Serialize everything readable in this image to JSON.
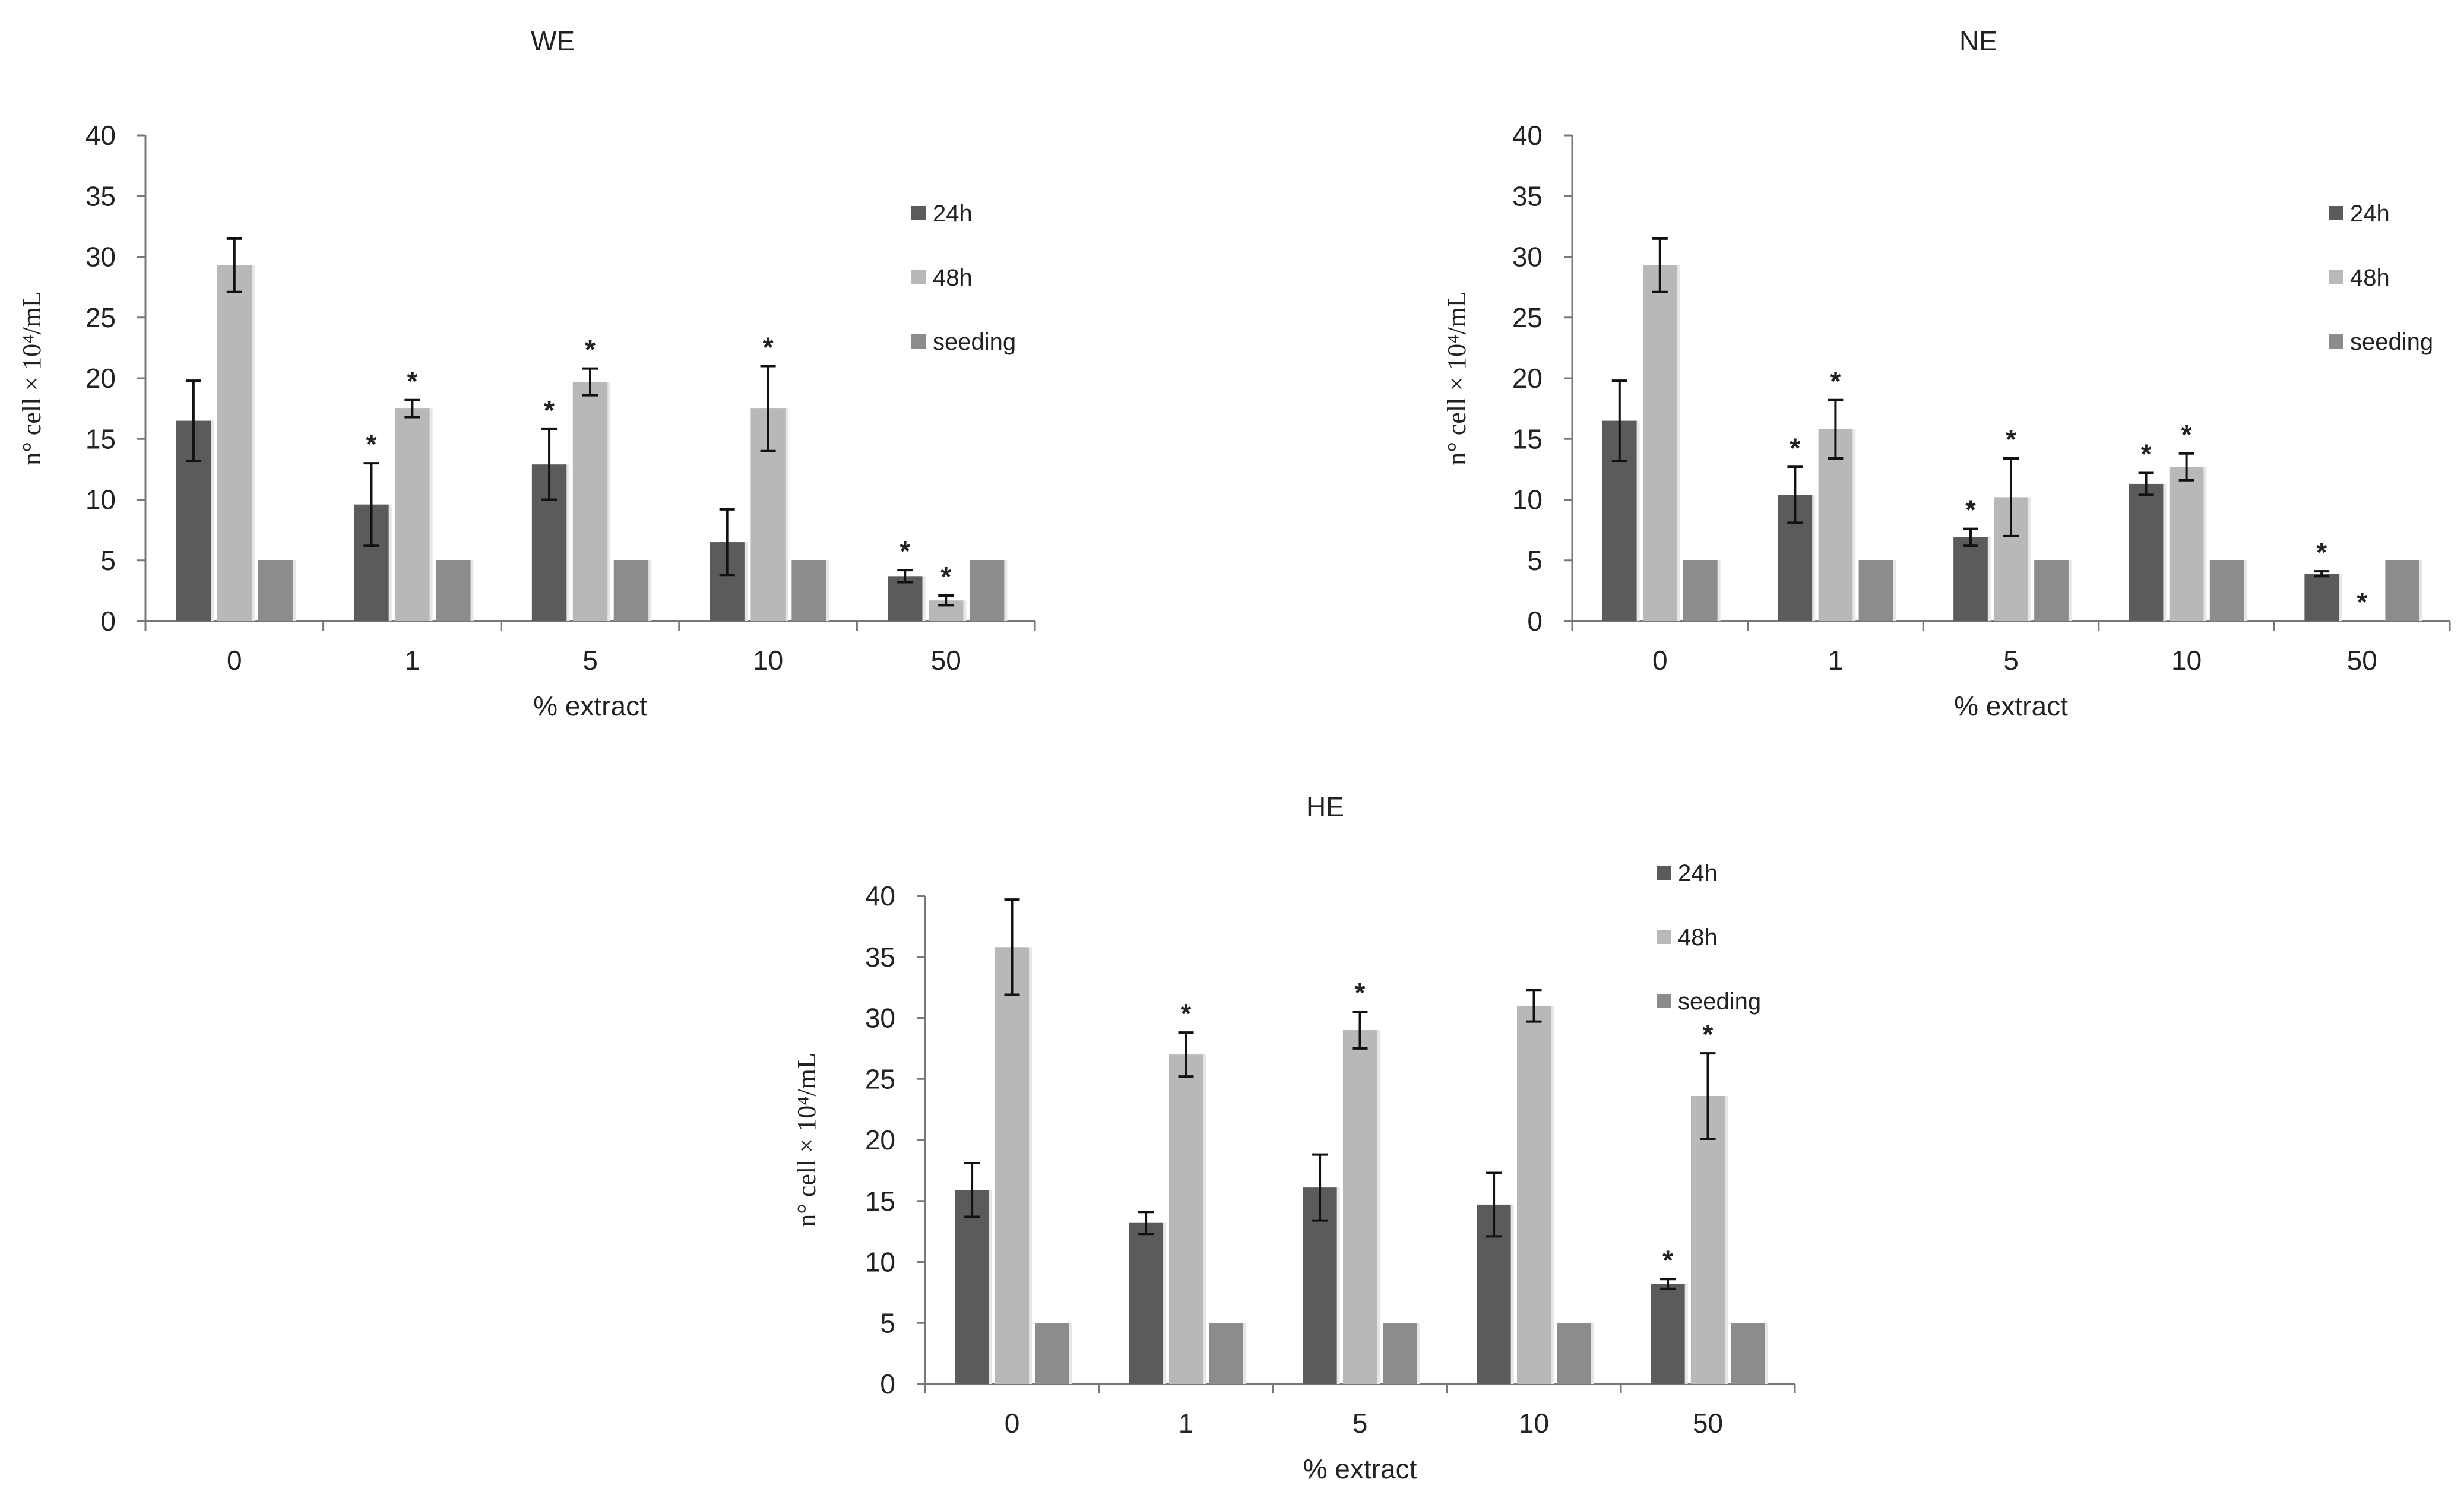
{
  "chart_data": [
    {
      "type": "bar",
      "title": "WE",
      "xlabel": "% extract",
      "ylabel": "n° cell × 10⁴/mL",
      "ylim": [
        0,
        40
      ],
      "yticks": [
        0,
        5,
        10,
        15,
        20,
        25,
        30,
        35,
        40
      ],
      "categories": [
        "0",
        "1",
        "5",
        "10",
        "50"
      ],
      "series": [
        {
          "name": "24h",
          "color": "#5b5b5b",
          "values": [
            16.5,
            9.6,
            12.9,
            6.5,
            3.7
          ],
          "errors": [
            3.3,
            3.4,
            2.9,
            2.7,
            0.5
          ],
          "significant": [
            false,
            true,
            true,
            false,
            true
          ]
        },
        {
          "name": "48h",
          "color": "#b8b8b8",
          "values": [
            29.3,
            17.5,
            19.7,
            17.5,
            1.7
          ],
          "errors": [
            2.2,
            0.7,
            1.1,
            3.5,
            0.4
          ],
          "significant": [
            false,
            true,
            true,
            true,
            true
          ]
        },
        {
          "name": "seeding",
          "color": "#8c8c8c",
          "values": [
            5,
            5,
            5,
            5,
            5
          ],
          "errors": [
            0,
            0,
            0,
            0,
            0
          ],
          "significant": [
            false,
            false,
            false,
            false,
            false
          ]
        }
      ],
      "legend": "right",
      "significance_marker": "*"
    },
    {
      "type": "bar",
      "title": "NE",
      "xlabel": "% extract",
      "ylabel": "n° cell × 10⁴/mL",
      "ylim": [
        0,
        40
      ],
      "yticks": [
        0,
        5,
        10,
        15,
        20,
        25,
        30,
        35,
        40
      ],
      "categories": [
        "0",
        "1",
        "5",
        "10",
        "50"
      ],
      "series": [
        {
          "name": "24h",
          "color": "#5b5b5b",
          "values": [
            16.5,
            10.4,
            6.9,
            11.3,
            3.9
          ],
          "errors": [
            3.3,
            2.3,
            0.7,
            0.9,
            0.2
          ],
          "significant": [
            false,
            true,
            true,
            true,
            true
          ]
        },
        {
          "name": "48h",
          "color": "#b8b8b8",
          "values": [
            29.3,
            15.8,
            10.2,
            12.7,
            0.0
          ],
          "errors": [
            2.2,
            2.4,
            3.2,
            1.1,
            0.0
          ],
          "significant": [
            false,
            true,
            true,
            true,
            true
          ]
        },
        {
          "name": "seeding",
          "color": "#8c8c8c",
          "values": [
            5,
            5,
            5,
            5,
            5
          ],
          "errors": [
            0,
            0,
            0,
            0,
            0
          ],
          "significant": [
            false,
            false,
            false,
            false,
            false
          ]
        }
      ],
      "legend": "right",
      "significance_marker": "*"
    },
    {
      "type": "bar",
      "title": "HE",
      "xlabel": "% extract",
      "ylabel": "n° cell × 10⁴/mL",
      "ylim": [
        0,
        40
      ],
      "yticks": [
        0,
        5,
        10,
        15,
        20,
        25,
        30,
        35,
        40
      ],
      "categories": [
        "0",
        "1",
        "5",
        "10",
        "50"
      ],
      "series": [
        {
          "name": "24h",
          "color": "#5b5b5b",
          "values": [
            15.9,
            13.2,
            16.1,
            14.7,
            8.2
          ],
          "errors": [
            2.2,
            0.9,
            2.7,
            2.6,
            0.4
          ],
          "significant": [
            false,
            false,
            false,
            false,
            true
          ]
        },
        {
          "name": "48h",
          "color": "#b8b8b8",
          "values": [
            35.8,
            27.0,
            29.0,
            31.0,
            23.6
          ],
          "errors": [
            3.9,
            1.8,
            1.5,
            1.3,
            3.5
          ],
          "significant": [
            false,
            true,
            true,
            false,
            true
          ]
        },
        {
          "name": "seeding",
          "color": "#8c8c8c",
          "values": [
            5,
            5,
            5,
            5,
            5
          ],
          "errors": [
            0,
            0,
            0,
            0,
            0
          ],
          "significant": [
            false,
            false,
            false,
            false,
            false
          ]
        }
      ],
      "legend": "right",
      "significance_marker": "*"
    }
  ]
}
